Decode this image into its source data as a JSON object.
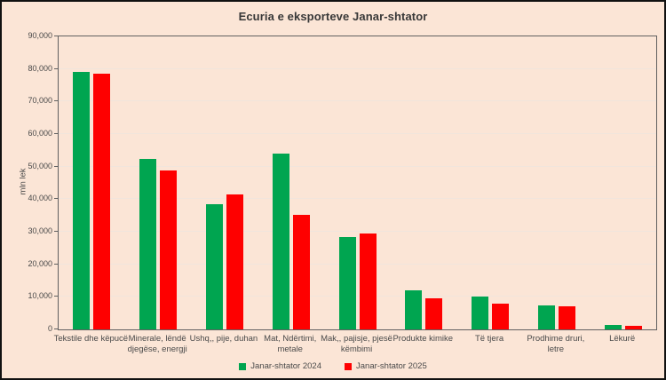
{
  "colors": {
    "background": "#fbe5d6",
    "plot_border": "#606060",
    "gridline": "#f1e5dc",
    "green": "#00a550",
    "red": "#fe0000",
    "text": "#4a4a4a"
  },
  "chart_data": {
    "type": "bar",
    "title": "Ecuria e eksporteve Janar-shtator",
    "xlabel": "",
    "ylabel": "mln lek",
    "ylim": [
      0,
      90000
    ],
    "ytick_step": 10000,
    "ytick_labels": [
      "0",
      "10,000",
      "20,000",
      "30,000",
      "40,000",
      "50,000",
      "60,000",
      "70,000",
      "80,000",
      "90,000"
    ],
    "grid": true,
    "legend_position": "bottom",
    "categories": [
      "Tekstile dhe këpucë",
      "Minerale, lëndë djegëse, energji",
      "Ushq,, pije, duhan",
      "Mat, Ndërtimi, metale",
      "Mak,, pajisje, pjesë këmbimi",
      "Produkte kimike",
      "Të tjera",
      "Prodhime druri, letre",
      "Lëkurë"
    ],
    "series": [
      {
        "name": "Janar-shtator 2024",
        "color_key": "green",
        "values": [
          79000,
          52300,
          38500,
          54000,
          28300,
          11900,
          10000,
          7300,
          1500
        ]
      },
      {
        "name": "Janar-shtator 2025",
        "color_key": "red",
        "values": [
          78500,
          48800,
          41500,
          35200,
          29500,
          9600,
          7900,
          7200,
          1200
        ]
      }
    ]
  }
}
